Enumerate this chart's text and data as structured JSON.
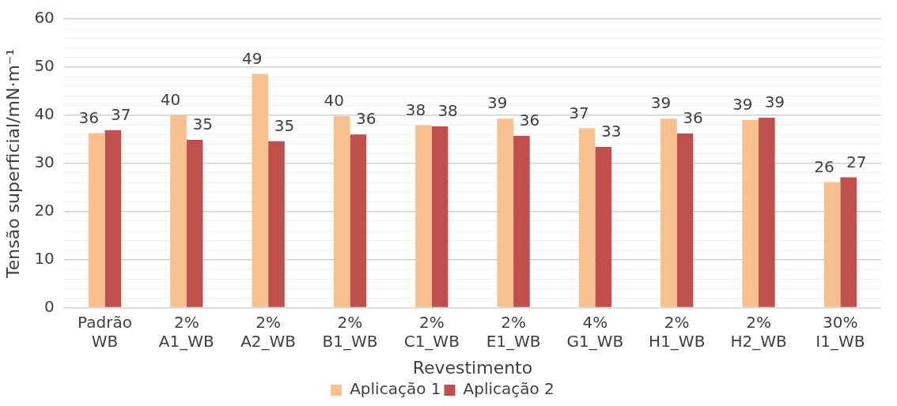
{
  "chart_data": {
    "type": "bar",
    "xlabel": "Revestimento",
    "ylabel": "Tensão superficial/mN·m⁻¹",
    "categories": [
      "Padrão WB",
      "2% A1_WB",
      "2% A2_WB",
      "2% B1_WB",
      "2% C1_WB",
      "2% E1_WB",
      "4% G1_WB",
      "2% H1_WB",
      "2% H2_WB",
      "30% I1_WB"
    ],
    "series": [
      {
        "name": "Aplicação 1",
        "color": "#f8bf8f",
        "values": [
          36.3,
          40.0,
          48.6,
          39.8,
          37.9,
          39.3,
          37.3,
          39.3,
          39.0,
          26.1
        ],
        "value_labels": [
          "36",
          "40",
          "49",
          "40",
          "38",
          "39",
          "37",
          "39",
          "39",
          "26"
        ]
      },
      {
        "name": "Aplicação 2",
        "color": "#c0504d",
        "values": [
          36.9,
          34.9,
          34.6,
          36.0,
          37.7,
          35.7,
          33.4,
          36.2,
          39.5,
          27.1
        ],
        "value_labels": [
          "37",
          "35",
          "35",
          "36",
          "38",
          "36",
          "33",
          "36",
          "39",
          "27"
        ]
      }
    ],
    "ylim": [
      0,
      60
    ],
    "yticks": [
      0,
      {
        "value": 2,
        "label": null
      },
      {
        "value": 4,
        "label": null
      },
      {
        "value": 6,
        "label": null
      },
      {
        "value": 8,
        "label": null
      },
      10,
      {
        "value": 12,
        "label": null
      },
      {
        "value": 14,
        "label": null
      },
      {
        "value": 16,
        "label": null
      },
      {
        "value": 18,
        "label": null
      },
      20,
      {
        "value": 22,
        "label": null
      },
      {
        "value": 24,
        "label": null
      },
      {
        "value": 26,
        "label": null
      },
      {
        "value": 28,
        "label": null
      },
      30,
      {
        "value": 32,
        "label": null
      },
      {
        "value": 34,
        "label": null
      },
      {
        "value": 36,
        "label": null
      },
      {
        "value": 38,
        "label": null
      },
      40,
      {
        "value": 42,
        "label": null
      },
      {
        "value": 44,
        "label": null
      },
      {
        "value": 46,
        "label": null
      },
      {
        "value": 48,
        "label": null
      },
      50,
      {
        "value": 52,
        "label": null
      },
      {
        "value": 54,
        "label": null
      },
      {
        "value": 56,
        "label": null
      },
      {
        "value": 58,
        "label": null
      },
      60
    ],
    "grid": "y",
    "legend": "bottom"
  }
}
